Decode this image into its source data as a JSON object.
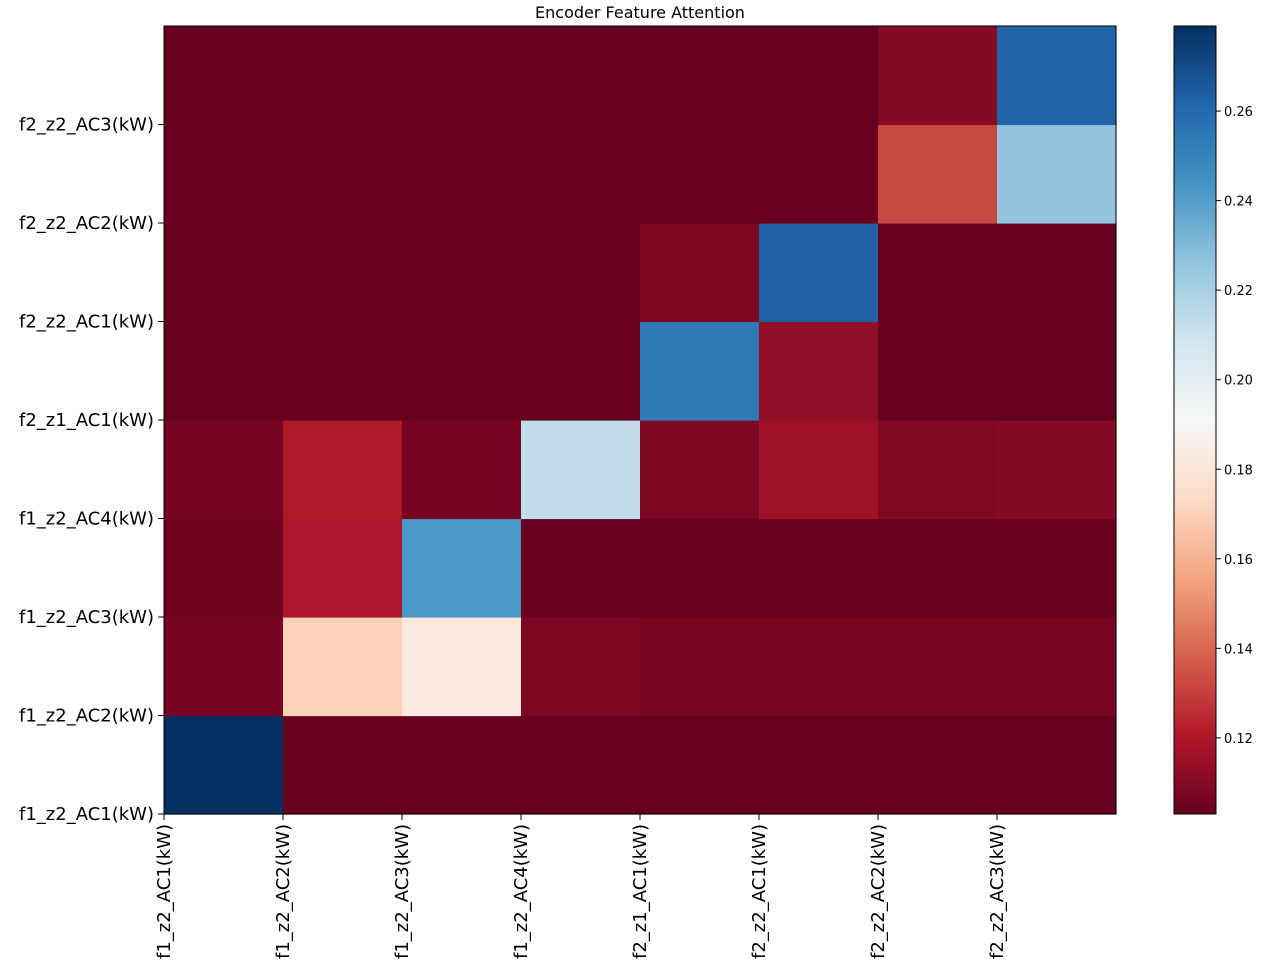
{
  "chart_data": {
    "type": "heatmap",
    "title": "Encoder Feature Attention",
    "x_tick_labels": [
      "f1_z2_AC1(kW)",
      "f1_z2_AC2(kW)",
      "f1_z2_AC3(kW)",
      "f1_z2_AC4(kW)",
      "f2_z1_AC1(kW)",
      "f2_z2_AC1(kW)",
      "f2_z2_AC2(kW)",
      "f2_z2_AC3(kW)"
    ],
    "y_tick_labels": [
      "f1_z2_AC1(kW)",
      "f1_z2_AC2(kW)",
      "f1_z2_AC3(kW)",
      "f1_z2_AC4(kW)",
      "f2_z1_AC1(kW)",
      "f2_z2_AC1(kW)",
      "f2_z2_AC2(kW)",
      "f2_z2_AC3(kW)"
    ],
    "rows_bottom_to_top": [
      [
        0.279,
        0.103,
        0.103,
        0.103,
        0.103,
        0.103,
        0.103,
        0.103
      ],
      [
        0.106,
        0.17,
        0.182,
        0.108,
        0.107,
        0.107,
        0.107,
        0.107
      ],
      [
        0.105,
        0.119,
        0.242,
        0.104,
        0.104,
        0.104,
        0.104,
        0.104
      ],
      [
        0.106,
        0.12,
        0.106,
        0.213,
        0.108,
        0.116,
        0.109,
        0.11
      ],
      [
        0.103,
        0.103,
        0.103,
        0.103,
        0.254,
        0.113,
        0.103,
        0.103
      ],
      [
        0.103,
        0.103,
        0.103,
        0.103,
        0.108,
        0.263,
        0.103,
        0.103
      ],
      [
        0.104,
        0.104,
        0.104,
        0.104,
        0.104,
        0.104,
        0.132,
        0.226
      ],
      [
        0.103,
        0.103,
        0.103,
        0.103,
        0.103,
        0.103,
        0.11,
        0.262
      ]
    ],
    "colormap": "RdBu",
    "colorbar_range": [
      0.103,
      0.279
    ],
    "colorbar_ticks": [
      0.12,
      0.14,
      0.16,
      0.18,
      0.2,
      0.22,
      0.24,
      0.26
    ],
    "colorbar_tick_labels": [
      "0.12",
      "0.14",
      "0.16",
      "0.18",
      "0.20",
      "0.22",
      "0.24",
      "0.26"
    ]
  }
}
